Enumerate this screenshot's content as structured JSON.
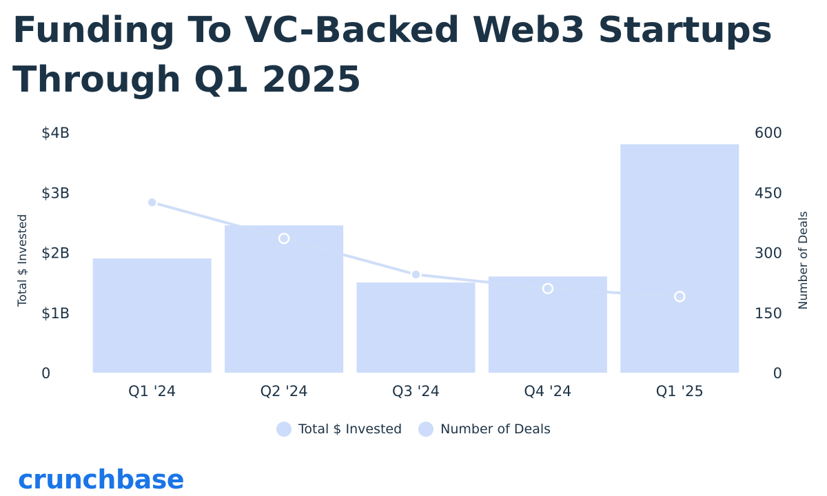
{
  "title": "Funding To VC-Backed Web3 Startups Through Q1 2025",
  "logo": "crunchbase",
  "colors": {
    "title": "#1c3346",
    "bar": "#ccdcfa",
    "line": "#cfdef8",
    "logo": "#1a75e8",
    "text": "#1c3346"
  },
  "chart_data": {
    "type": "bar",
    "categories": [
      "Q1 '24",
      "Q2 '24",
      "Q3 '24",
      "Q4 '24",
      "Q1 '25"
    ],
    "series": [
      {
        "name": "Total $ Invested",
        "type": "bar",
        "axis": "left",
        "values": [
          1.9,
          2.45,
          1.5,
          1.6,
          3.8
        ]
      },
      {
        "name": "Number of Deals",
        "type": "line",
        "axis": "right",
        "values": [
          425,
          335,
          245,
          210,
          190
        ]
      }
    ],
    "ylabel": "Total $ Invested",
    "y2label": "Number of Deals",
    "ylim": [
      0,
      4
    ],
    "y2lim": [
      0,
      600
    ],
    "yticks": [
      "0",
      "$1B",
      "$2B",
      "$3B",
      "$4B"
    ],
    "y2ticks": [
      "0",
      "150",
      "300",
      "450",
      "600"
    ],
    "grid": false,
    "legend_position": "bottom-center"
  }
}
